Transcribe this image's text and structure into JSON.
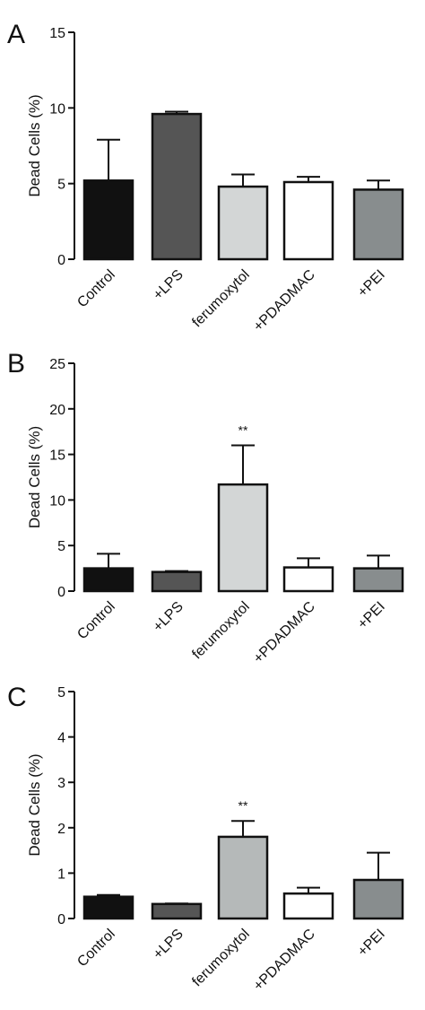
{
  "figure": {
    "panels": [
      "A",
      "B",
      "C"
    ]
  },
  "chart_data": [
    {
      "type": "bar",
      "panel": "A",
      "categories": [
        "Control",
        "+LPS",
        "ferumoxytol",
        "+PDADMAC",
        "+PEI"
      ],
      "values": [
        5.2,
        9.6,
        4.8,
        5.1,
        4.6
      ],
      "errors": [
        2.7,
        0.15,
        0.8,
        0.35,
        0.6
      ],
      "bar_colors": [
        "#111111",
        "#555555",
        "#d3d6d6",
        "#ffffff",
        "#888d8e"
      ],
      "annotations": [
        "",
        "",
        "",
        "",
        ""
      ],
      "ylabel": "Dead Cells (%)",
      "ylim": [
        0,
        15
      ],
      "yticks": [
        0,
        5,
        10,
        15
      ],
      "ytick_labels": [
        "0",
        "5",
        "10",
        "15"
      ],
      "grid": false
    },
    {
      "type": "bar",
      "panel": "B",
      "categories": [
        "Control",
        "+LPS",
        "ferumoxytol",
        "+PDADMAC",
        "+PEI"
      ],
      "values": [
        2.5,
        2.1,
        11.7,
        2.6,
        2.5
      ],
      "errors": [
        1.6,
        0.1,
        4.3,
        1.0,
        1.4
      ],
      "bar_colors": [
        "#111111",
        "#555555",
        "#d3d6d6",
        "#ffffff",
        "#888d8e"
      ],
      "annotations": [
        "",
        "",
        "**",
        "",
        ""
      ],
      "ylabel": "Dead Cells (%)",
      "ylim": [
        0,
        25
      ],
      "yticks": [
        0,
        5,
        10,
        15,
        20,
        25
      ],
      "ytick_labels": [
        "0",
        "5",
        "10",
        "15",
        "20",
        "25"
      ],
      "grid": false
    },
    {
      "type": "bar",
      "panel": "C",
      "categories": [
        "Control",
        "+LPS",
        "ferumoxytol",
        "+PDADMAC",
        "+PEI"
      ],
      "values": [
        0.48,
        0.32,
        1.8,
        0.55,
        0.85
      ],
      "errors": [
        0.04,
        0.01,
        0.35,
        0.13,
        0.6
      ],
      "bar_colors": [
        "#111111",
        "#555555",
        "#b5b9b9",
        "#ffffff",
        "#888d8e"
      ],
      "annotations": [
        "",
        "",
        "**",
        "",
        ""
      ],
      "ylabel": "Dead Cells (%)",
      "ylim": [
        0,
        5
      ],
      "yticks": [
        0,
        1,
        2,
        3,
        4,
        5
      ],
      "ytick_labels": [
        "0",
        "1",
        "2",
        "3",
        "4",
        "5"
      ],
      "grid": false
    }
  ]
}
